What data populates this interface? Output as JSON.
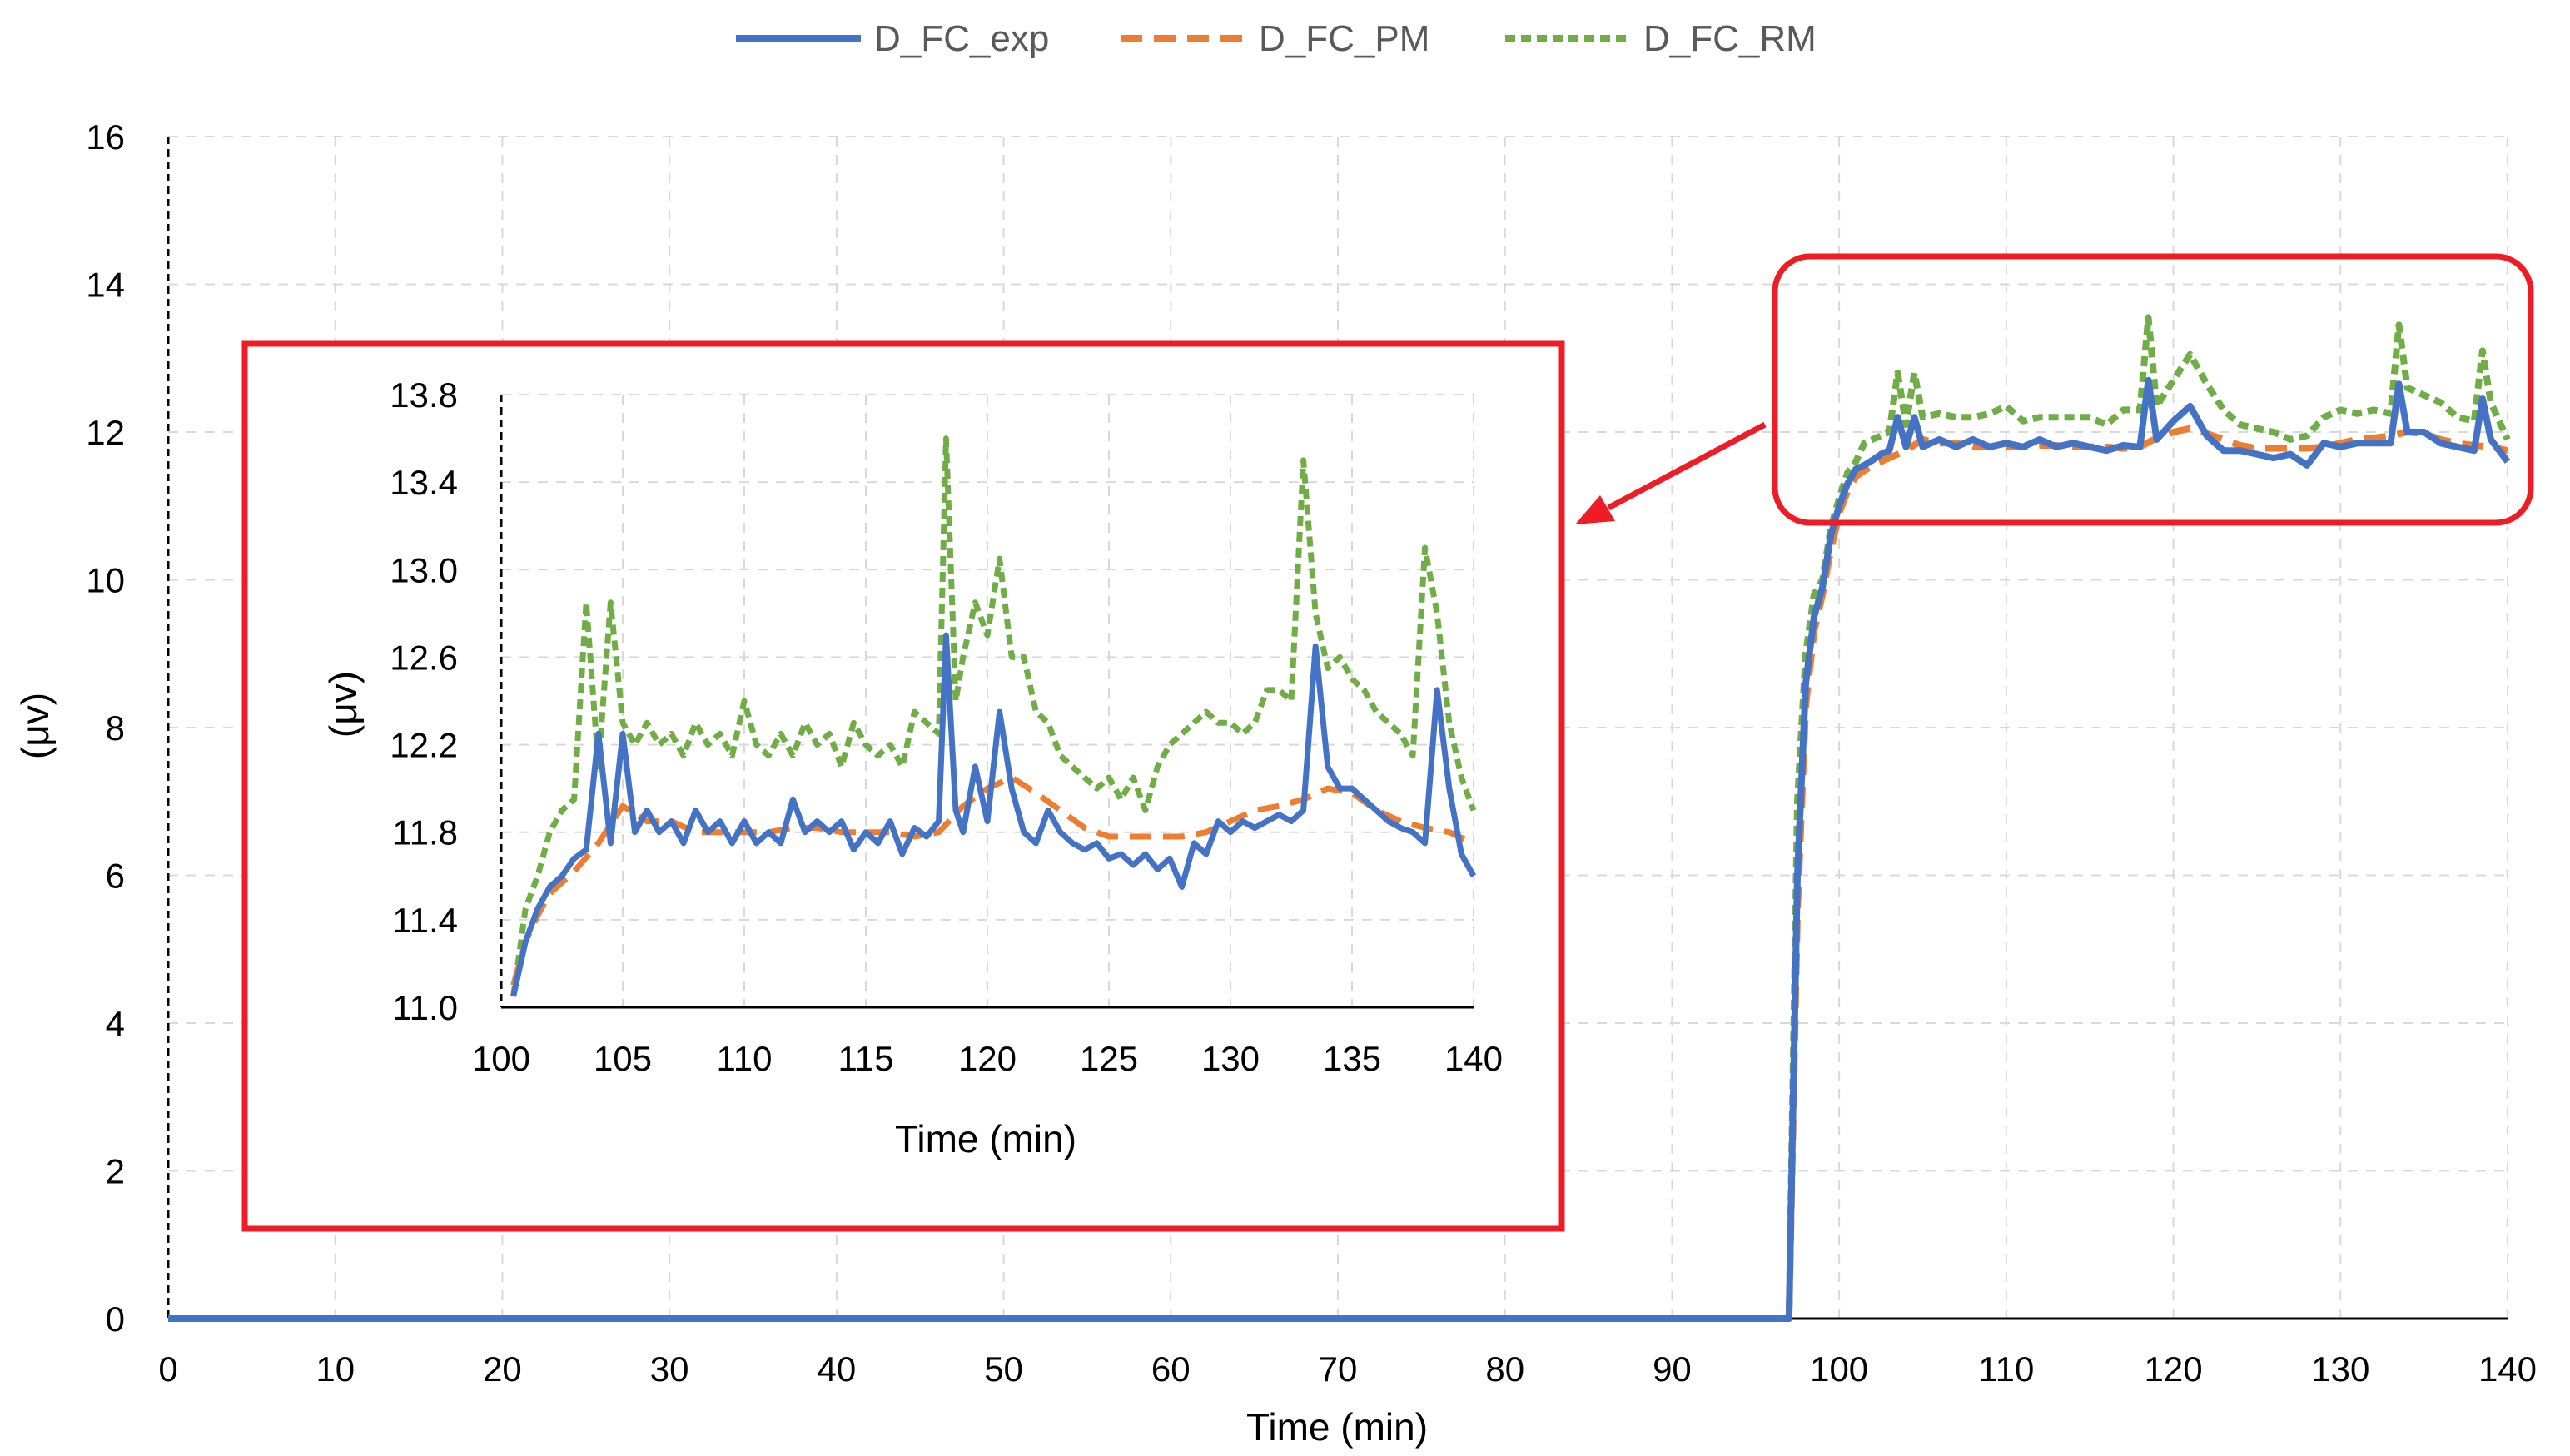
{
  "colors": {
    "exp": "#4472c4",
    "pm": "#ed7d31",
    "rm": "#70ad47",
    "highlight": "#ee1c24",
    "grid": "#d9d9d9"
  },
  "chart_data": [
    {
      "type": "line",
      "panel": "main",
      "xlabel": "Time (min)",
      "ylabel": "(μv)",
      "xlim": [
        0,
        140
      ],
      "ylim": [
        0,
        16
      ],
      "xticks": [
        "0",
        "10",
        "20",
        "30",
        "40",
        "50",
        "60",
        "70",
        "80",
        "90",
        "100",
        "110",
        "120",
        "130",
        "140"
      ],
      "yticks": [
        "0",
        "2",
        "4",
        "6",
        "8",
        "10",
        "12",
        "14",
        "16"
      ],
      "legend_position": "top",
      "grid": true,
      "series": [
        {
          "name": "D_FC_exp",
          "style": "solid",
          "x": [
            0,
            97,
            97.5,
            98,
            98.5,
            99,
            99.5,
            100,
            100.5,
            101,
            101.5,
            102,
            102.5,
            103,
            103.5,
            104,
            104.5,
            105,
            106,
            107,
            108,
            109,
            110,
            111,
            112,
            113,
            114,
            115,
            116,
            117,
            118,
            118.5,
            119,
            120,
            121,
            122,
            123,
            124,
            125,
            126,
            127,
            128,
            129,
            130,
            131,
            132,
            133,
            133.5,
            134,
            135,
            136,
            137,
            138,
            138.5,
            139,
            140
          ],
          "y": [
            0,
            0,
            6.0,
            8.6,
            9.5,
            9.9,
            10.6,
            11.0,
            11.3,
            11.5,
            11.55,
            11.62,
            11.7,
            11.75,
            12.2,
            11.8,
            12.2,
            11.8,
            11.9,
            11.8,
            11.9,
            11.8,
            11.85,
            11.8,
            11.9,
            11.8,
            11.85,
            11.8,
            11.75,
            11.82,
            11.8,
            12.7,
            11.9,
            12.15,
            12.35,
            11.95,
            11.75,
            11.75,
            11.7,
            11.65,
            11.7,
            11.55,
            11.85,
            11.8,
            11.85,
            11.85,
            11.85,
            12.65,
            12.0,
            12.0,
            11.85,
            11.8,
            11.75,
            12.45,
            11.9,
            11.6
          ]
        },
        {
          "name": "D_FC_PM",
          "style": "dashed",
          "x": [
            0,
            97,
            97.5,
            98,
            98.5,
            99,
            99.5,
            100,
            100.5,
            101,
            102,
            103,
            104,
            105,
            106,
            107,
            108,
            109,
            110,
            111,
            112,
            113,
            114,
            115,
            116,
            117,
            118,
            119,
            120,
            121,
            122,
            123,
            124,
            125,
            126,
            127,
            128,
            129,
            130,
            131,
            132,
            133,
            134,
            135,
            136,
            137,
            138,
            139,
            140
          ],
          "y": [
            0,
            0,
            5.5,
            8.3,
            9.3,
            9.8,
            10.4,
            10.9,
            11.2,
            11.4,
            11.55,
            11.65,
            11.75,
            11.9,
            11.85,
            11.85,
            11.8,
            11.8,
            11.8,
            11.8,
            11.82,
            11.82,
            11.8,
            11.8,
            11.8,
            11.78,
            11.8,
            11.92,
            12.0,
            12.05,
            11.98,
            11.9,
            11.82,
            11.78,
            11.78,
            11.78,
            11.78,
            11.8,
            11.85,
            11.9,
            11.92,
            11.95,
            12.0,
            11.98,
            11.9,
            11.85,
            11.82,
            11.8,
            11.75
          ]
        },
        {
          "name": "D_FC_RM",
          "style": "dotted",
          "x": [
            0,
            97,
            97.5,
            98,
            98.5,
            99,
            99.5,
            100,
            100.5,
            101,
            101.5,
            102,
            102.5,
            103,
            103.5,
            104,
            104.5,
            105,
            106,
            107,
            108,
            109,
            110,
            111,
            112,
            113,
            114,
            115,
            116,
            117,
            118,
            118.5,
            119,
            120,
            121,
            122,
            123,
            124,
            125,
            126,
            127,
            128,
            129,
            130,
            131,
            132,
            133,
            133.5,
            134,
            135,
            136,
            137,
            138,
            138.5,
            139,
            140
          ],
          "y": [
            0,
            0,
            7.0,
            9.0,
            9.8,
            10.0,
            10.7,
            11.1,
            11.45,
            11.6,
            11.85,
            11.9,
            11.95,
            12.0,
            12.8,
            12.1,
            12.8,
            12.2,
            12.25,
            12.2,
            12.2,
            12.25,
            12.35,
            12.15,
            12.2,
            12.2,
            12.2,
            12.2,
            12.1,
            12.3,
            12.3,
            13.55,
            12.35,
            12.7,
            13.05,
            12.65,
            12.3,
            12.1,
            12.05,
            12.0,
            11.9,
            11.95,
            12.2,
            12.3,
            12.25,
            12.3,
            12.25,
            13.45,
            12.6,
            12.5,
            12.4,
            12.2,
            12.15,
            13.1,
            12.4,
            11.9
          ]
        }
      ]
    },
    {
      "type": "line",
      "panel": "inset",
      "xlabel": "Time (min)",
      "ylabel": "(μv)",
      "xlim": [
        100,
        140
      ],
      "ylim": [
        11.0,
        13.8
      ],
      "xticks": [
        "100",
        "105",
        "110",
        "115",
        "120",
        "125",
        "130",
        "135",
        "140"
      ],
      "yticks": [
        "11.0",
        "11.4",
        "11.8",
        "12.2",
        "12.6",
        "13.0",
        "13.4",
        "13.8"
      ],
      "grid": true,
      "series": [
        {
          "name": "D_FC_exp",
          "style": "solid",
          "x": [
            100.5,
            101,
            101.5,
            102,
            102.5,
            103,
            103.5,
            104,
            104.5,
            105,
            105.5,
            106,
            106.5,
            107,
            107.5,
            108,
            108.5,
            109,
            109.5,
            110,
            110.5,
            111,
            111.5,
            112,
            112.5,
            113,
            113.5,
            114,
            114.5,
            115,
            115.5,
            116,
            116.5,
            117,
            117.5,
            118,
            118.3,
            118.7,
            119,
            119.5,
            120,
            120.5,
            121,
            121.5,
            122,
            122.5,
            123,
            123.5,
            124,
            124.5,
            125,
            125.5,
            126,
            126.5,
            127,
            127.5,
            128,
            128.5,
            129,
            129.5,
            130,
            130.5,
            131,
            131.5,
            132,
            132.5,
            133,
            133.5,
            134,
            134.5,
            135,
            135.5,
            136,
            136.5,
            137,
            137.5,
            138,
            138.5,
            139,
            139.5,
            140
          ],
          "y": [
            11.05,
            11.3,
            11.45,
            11.55,
            11.6,
            11.68,
            11.72,
            12.25,
            11.75,
            12.25,
            11.8,
            11.9,
            11.8,
            11.85,
            11.75,
            11.9,
            11.8,
            11.85,
            11.75,
            11.85,
            11.75,
            11.8,
            11.75,
            11.95,
            11.8,
            11.85,
            11.8,
            11.85,
            11.72,
            11.8,
            11.75,
            11.85,
            11.7,
            11.82,
            11.78,
            11.85,
            12.7,
            11.9,
            11.8,
            12.1,
            11.85,
            12.35,
            12.0,
            11.8,
            11.75,
            11.9,
            11.8,
            11.75,
            11.72,
            11.75,
            11.68,
            11.7,
            11.65,
            11.7,
            11.63,
            11.68,
            11.55,
            11.75,
            11.7,
            11.85,
            11.8,
            11.85,
            11.82,
            11.85,
            11.88,
            11.85,
            11.9,
            12.65,
            12.1,
            12.0,
            12.0,
            11.95,
            11.9,
            11.85,
            11.82,
            11.8,
            11.75,
            12.45,
            12.0,
            11.7,
            11.6
          ]
        },
        {
          "name": "D_FC_PM",
          "style": "dashed",
          "x": [
            100.5,
            101,
            101.5,
            102,
            103,
            104,
            105,
            106,
            107,
            108,
            109,
            110,
            111,
            112,
            113,
            114,
            115,
            116,
            117,
            118,
            119,
            120,
            121,
            122,
            123,
            124,
            125,
            126,
            127,
            128,
            129,
            130,
            131,
            132,
            133,
            134,
            135,
            136,
            137,
            138,
            139,
            140
          ],
          "y": [
            11.1,
            11.3,
            11.42,
            11.52,
            11.62,
            11.75,
            11.92,
            11.85,
            11.85,
            11.8,
            11.8,
            11.8,
            11.8,
            11.82,
            11.82,
            11.8,
            11.8,
            11.8,
            11.78,
            11.8,
            11.92,
            12.0,
            12.05,
            11.98,
            11.9,
            11.82,
            11.78,
            11.78,
            11.78,
            11.78,
            11.8,
            11.85,
            11.9,
            11.92,
            11.95,
            12.0,
            11.98,
            11.9,
            11.85,
            11.82,
            11.8,
            11.75
          ]
        },
        {
          "name": "D_FC_RM",
          "style": "dotted",
          "x": [
            100.5,
            101,
            101.5,
            102,
            102.5,
            103,
            103.5,
            104,
            104.5,
            105,
            105.5,
            106,
            106.5,
            107,
            107.5,
            108,
            108.5,
            109,
            109.5,
            110,
            110.5,
            111,
            111.5,
            112,
            112.5,
            113,
            113.5,
            114,
            114.5,
            115,
            115.5,
            116,
            116.5,
            117,
            117.5,
            118,
            118.3,
            118.7,
            119,
            119.5,
            120,
            120.5,
            121,
            121.5,
            122,
            122.5,
            123,
            123.5,
            124,
            124.5,
            125,
            125.5,
            126,
            126.5,
            127,
            127.5,
            128,
            128.5,
            129,
            129.5,
            130,
            130.5,
            131,
            131.5,
            132,
            132.5,
            133,
            133.5,
            134,
            134.5,
            135,
            135.5,
            136,
            136.5,
            137,
            137.5,
            138,
            138.5,
            139,
            139.5,
            140
          ],
          "y": [
            11.05,
            11.45,
            11.6,
            11.8,
            11.9,
            11.95,
            12.85,
            12.1,
            12.85,
            12.3,
            12.2,
            12.3,
            12.2,
            12.25,
            12.15,
            12.3,
            12.2,
            12.25,
            12.15,
            12.4,
            12.2,
            12.15,
            12.25,
            12.15,
            12.3,
            12.2,
            12.25,
            12.1,
            12.3,
            12.2,
            12.15,
            12.2,
            12.1,
            12.35,
            12.3,
            12.25,
            13.6,
            12.4,
            12.6,
            12.85,
            12.7,
            13.05,
            12.6,
            12.6,
            12.35,
            12.3,
            12.15,
            12.1,
            12.05,
            12.0,
            12.05,
            11.95,
            12.05,
            11.9,
            12.1,
            12.2,
            12.25,
            12.3,
            12.35,
            12.3,
            12.3,
            12.25,
            12.3,
            12.45,
            12.45,
            12.4,
            13.5,
            12.8,
            12.55,
            12.6,
            12.5,
            12.45,
            12.35,
            12.3,
            12.25,
            12.15,
            13.1,
            12.8,
            12.3,
            12.05,
            11.9
          ]
        }
      ]
    }
  ]
}
